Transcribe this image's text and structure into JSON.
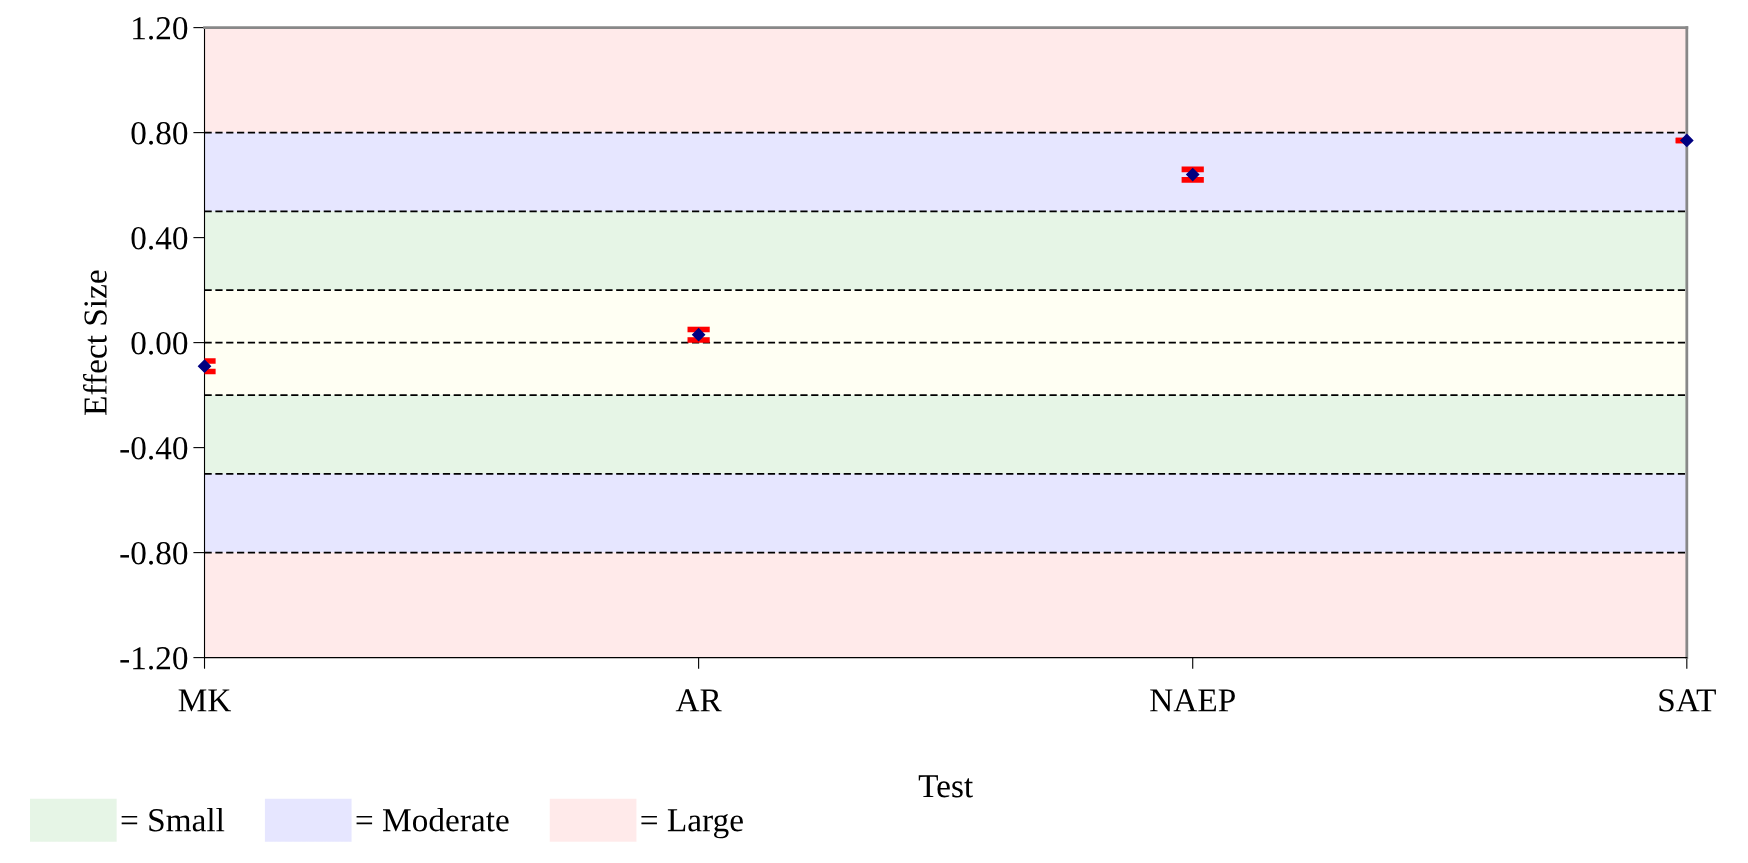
{
  "chart_data": {
    "type": "scatter",
    "xlabel": "Test",
    "ylabel": "Effect Size",
    "categories": [
      "MK",
      "AR",
      "NAEP",
      "SAT"
    ],
    "series": [
      {
        "color": "#000080",
        "values": [
          -0.09,
          0.03,
          0.64,
          0.77
        ],
        "errors": [
          0.02,
          0.02,
          0.02,
          null
        ]
      }
    ],
    "marker": "diamond",
    "ylim": [
      -1.2,
      1.2
    ],
    "yticks": [
      {
        "value": -1.2,
        "label": "-1.20"
      },
      {
        "value": -0.8,
        "label": "-0.80"
      },
      {
        "value": -0.4,
        "label": "-0.40"
      },
      {
        "value": 0,
        "label": "0.00"
      },
      {
        "value": 0.4,
        "label": "0.40"
      },
      {
        "value": 0.8,
        "label": "0.80"
      },
      {
        "value": 1.2,
        "label": "1.20"
      }
    ],
    "bands": [
      {
        "axis": "y",
        "from": -0.2,
        "to": 0.2,
        "color": "#ffff99"
      },
      {
        "axis": "y",
        "from": 0.2,
        "to": 0.5,
        "color": "#33aa33",
        "label": "= Small"
      },
      {
        "axis": "y",
        "from": -0.5,
        "to": -0.2,
        "color": "#33aa33"
      },
      {
        "axis": "y",
        "from": 0.5,
        "to": 0.8,
        "color": "#3333ff",
        "label": "= Moderate"
      },
      {
        "axis": "y",
        "from": -0.8,
        "to": -0.5,
        "color": "#3333ff"
      },
      {
        "axis": "y",
        "from": 0.8,
        "to": 1.2,
        "color": "#ff5555",
        "label": "= Large"
      },
      {
        "axis": "y",
        "from": -1.2,
        "to": -0.8,
        "color": "#ff5555"
      }
    ],
    "ref_lines": [
      {
        "axis": "y",
        "value": 0.8,
        "line_style": "dashed",
        "color": "#000000"
      },
      {
        "axis": "y",
        "value": 0.5,
        "line_style": "dashed",
        "color": "#000000"
      },
      {
        "axis": "y",
        "value": 0.2,
        "line_style": "dashed",
        "color": "#000000"
      },
      {
        "axis": "y",
        "value": 0,
        "line_style": "dashed",
        "color": "#000000"
      },
      {
        "axis": "y",
        "value": -0.2,
        "line_style": "dashed",
        "color": "#000000"
      },
      {
        "axis": "y",
        "value": -0.5,
        "line_style": "dashed",
        "color": "#000000"
      },
      {
        "axis": "y",
        "value": -0.8,
        "line_style": "dashed",
        "color": "#000000"
      }
    ],
    "legend": "bottom left",
    "grid": false
  }
}
